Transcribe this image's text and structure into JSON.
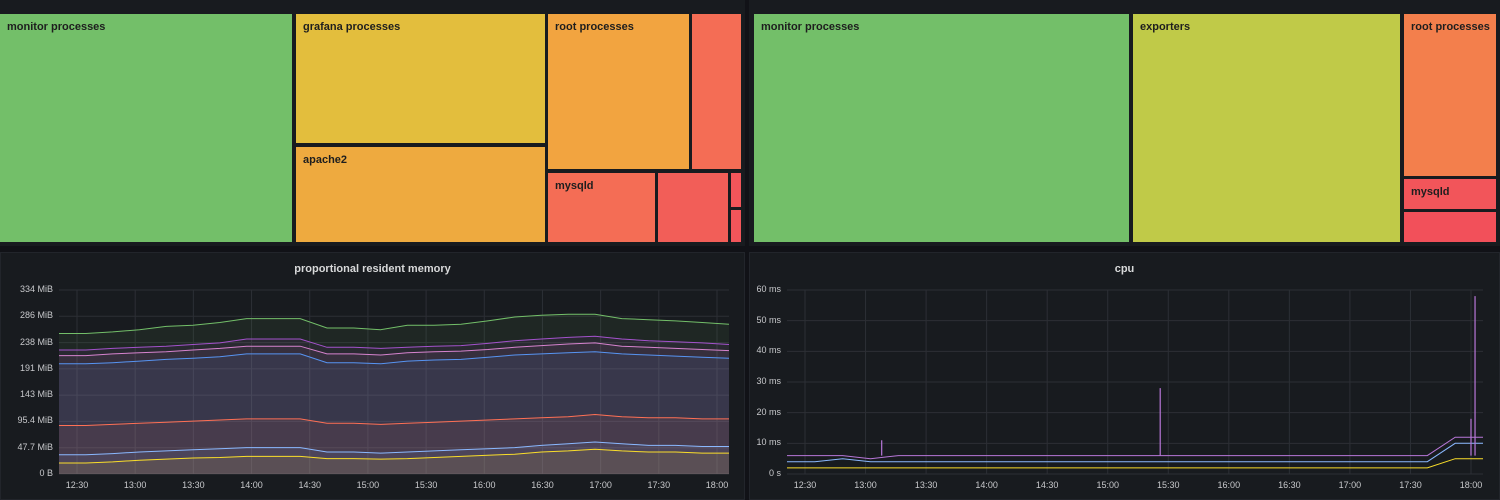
{
  "treemaps": {
    "left": {
      "cells": [
        {
          "label": "monitor processes",
          "color": "#73bf69"
        },
        {
          "label": "grafana processes",
          "color": "#e3be3d"
        },
        {
          "label": "apache2",
          "color": "#eeaa3f"
        },
        {
          "label": "root processes",
          "color": "#f2a440"
        },
        {
          "label": "",
          "color": "#f46d55"
        },
        {
          "label": "mysqld",
          "color": "#f46d55"
        },
        {
          "label": "",
          "color": "#f25e58"
        },
        {
          "label": "",
          "color": "#f2555a"
        },
        {
          "label": "",
          "color": "#f2555a"
        }
      ]
    },
    "right": {
      "cells": [
        {
          "label": "monitor processes",
          "color": "#73bf69"
        },
        {
          "label": "exporters",
          "color": "#c0ca48"
        },
        {
          "label": "root processes",
          "color": "#f37f4c"
        },
        {
          "label": "mysqld",
          "color": "#f2555a"
        },
        {
          "label": "",
          "color": "#f2505a"
        }
      ]
    }
  },
  "memory_panel": {
    "title": "proportional resident memory"
  },
  "cpu_panel": {
    "title": "cpu"
  },
  "chart_data": [
    {
      "type": "area",
      "title": "proportional resident memory",
      "x_ticks": [
        "12:30",
        "13:00",
        "13:30",
        "14:00",
        "14:30",
        "15:00",
        "15:30",
        "16:00",
        "16:30",
        "17:00",
        "17:30",
        "18:00"
      ],
      "y_ticks": [
        "334 MiB",
        "286 MiB",
        "238 MiB",
        "191 MiB",
        "143 MiB",
        "95.4 MiB",
        "47.7 MiB",
        "0 B"
      ],
      "ylim": [
        0,
        334
      ],
      "series": [
        {
          "name": "series-green",
          "color": "#73bf69",
          "values": [
            255,
            255,
            258,
            262,
            268,
            270,
            275,
            282,
            282,
            282,
            265,
            265,
            262,
            270,
            270,
            272,
            278,
            285,
            288,
            290,
            290,
            282,
            280,
            278,
            275,
            272
          ]
        },
        {
          "name": "series-purple",
          "color": "#a352cc",
          "values": [
            225,
            225,
            228,
            230,
            232,
            235,
            238,
            245,
            245,
            245,
            230,
            230,
            228,
            230,
            232,
            233,
            237,
            242,
            245,
            248,
            250,
            245,
            242,
            240,
            238,
            235
          ]
        },
        {
          "name": "series-pink",
          "color": "#d683ce",
          "values": [
            215,
            215,
            218,
            220,
            222,
            225,
            228,
            232,
            232,
            232,
            218,
            218,
            216,
            220,
            222,
            223,
            226,
            230,
            233,
            236,
            238,
            232,
            230,
            228,
            226,
            224
          ]
        },
        {
          "name": "series-blue",
          "color": "#5794f2",
          "values": [
            200,
            200,
            202,
            205,
            208,
            210,
            213,
            218,
            218,
            218,
            202,
            202,
            200,
            205,
            207,
            208,
            212,
            216,
            218,
            220,
            222,
            218,
            216,
            214,
            212,
            210
          ]
        },
        {
          "name": "series-orange",
          "color": "#ff7055",
          "values": [
            88,
            88,
            90,
            92,
            94,
            96,
            98,
            100,
            100,
            100,
            92,
            92,
            90,
            92,
            94,
            96,
            98,
            100,
            102,
            104,
            108,
            104,
            102,
            102,
            100,
            100
          ]
        },
        {
          "name": "series-cyan",
          "color": "#8ab8ff",
          "values": [
            35,
            35,
            37,
            40,
            42,
            44,
            46,
            48,
            48,
            48,
            40,
            40,
            38,
            40,
            42,
            44,
            46,
            48,
            52,
            55,
            58,
            55,
            52,
            52,
            50,
            50
          ]
        },
        {
          "name": "series-yellow",
          "color": "#fade2a",
          "values": [
            20,
            20,
            22,
            25,
            27,
            29,
            30,
            32,
            32,
            32,
            28,
            28,
            27,
            28,
            30,
            32,
            34,
            36,
            40,
            42,
            45,
            42,
            40,
            40,
            38,
            38
          ]
        }
      ]
    },
    {
      "type": "line",
      "title": "cpu",
      "x_ticks": [
        "12:30",
        "13:00",
        "13:30",
        "14:00",
        "14:30",
        "15:00",
        "15:30",
        "16:00",
        "16:30",
        "17:00",
        "17:30",
        "18:00"
      ],
      "y_ticks": [
        "60 ms",
        "50 ms",
        "40 ms",
        "30 ms",
        "20 ms",
        "10 ms",
        "0 s"
      ],
      "ylim": [
        0,
        60
      ],
      "series": [
        {
          "name": "series-purple",
          "color": "#b877d9",
          "values": [
            6,
            6,
            6,
            5,
            6,
            6,
            6,
            6,
            6,
            6,
            6,
            6,
            6,
            6,
            6,
            6,
            6,
            6,
            6,
            6,
            6,
            6,
            6,
            6,
            12,
            12
          ]
        },
        {
          "name": "series-cyan",
          "color": "#8ab8ff",
          "values": [
            4,
            4,
            5,
            4,
            4,
            4,
            4,
            4,
            4,
            4,
            4,
            4,
            4,
            4,
            4,
            4,
            4,
            4,
            4,
            4,
            4,
            4,
            4,
            4,
            10,
            10
          ]
        },
        {
          "name": "series-yellow",
          "color": "#fade2a",
          "values": [
            2,
            2,
            2,
            2,
            2,
            2,
            2,
            2,
            2,
            2,
            2,
            2,
            2,
            2,
            2,
            2,
            2,
            2,
            2,
            2,
            2,
            2,
            2,
            2,
            5,
            5
          ]
        }
      ],
      "spikes": [
        {
          "x": "15:26",
          "value": 28
        },
        {
          "x": "18:02",
          "value": 58
        },
        {
          "x": "13:08",
          "value": 11
        },
        {
          "x": "18:00",
          "value": 18
        }
      ]
    }
  ]
}
